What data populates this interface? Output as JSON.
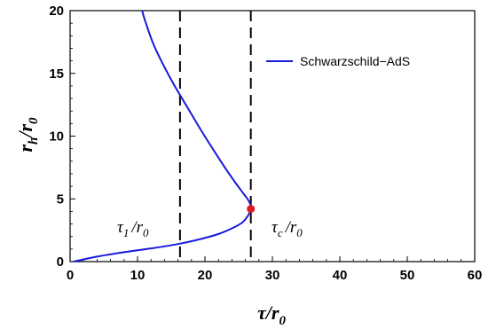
{
  "chart_data": {
    "type": "line",
    "title": "",
    "xlabel": {
      "main": "τ/r",
      "sub": "0"
    },
    "ylabel": {
      "main": "r",
      "sub_h": "h",
      "mid": "/r",
      "sub_0": "0"
    },
    "xlim": [
      0,
      60
    ],
    "ylim": [
      0,
      20
    ],
    "xticks": [
      0,
      10,
      20,
      30,
      40,
      50,
      60
    ],
    "yticks": [
      0,
      5,
      10,
      15,
      20
    ],
    "grid": false,
    "legend": {
      "placement": "top-right"
    },
    "series": [
      {
        "name": "Schwarzschild−AdS",
        "color": "#1a1adb",
        "x": [
          0.5,
          4,
          8,
          12,
          16,
          19,
          22,
          24,
          25.5,
          26.3,
          26.7,
          26.8,
          26.7,
          26.3,
          25.6,
          24.5,
          23.2,
          21.5,
          19.5,
          17.5,
          15.5,
          13.8,
          12.3,
          11.0,
          10.7
        ],
        "y": [
          0.0,
          0.4,
          0.75,
          1.05,
          1.4,
          1.75,
          2.2,
          2.65,
          3.1,
          3.6,
          4.0,
          4.2,
          4.6,
          5.0,
          5.5,
          6.3,
          7.3,
          8.7,
          10.4,
          12.2,
          14.0,
          15.7,
          17.4,
          19.4,
          20.0
        ]
      }
    ],
    "vlines": [
      {
        "x": 16.3,
        "label_main": "τ",
        "label_sub": "1",
        "label_rest": "/r",
        "label_sub2": "0"
      },
      {
        "x": 26.8,
        "label_main": "τ",
        "label_sub": "c",
        "label_rest": "/r",
        "label_sub2": "0"
      }
    ],
    "marker": {
      "x": 26.8,
      "y": 4.2,
      "color": "#e01b24"
    }
  }
}
